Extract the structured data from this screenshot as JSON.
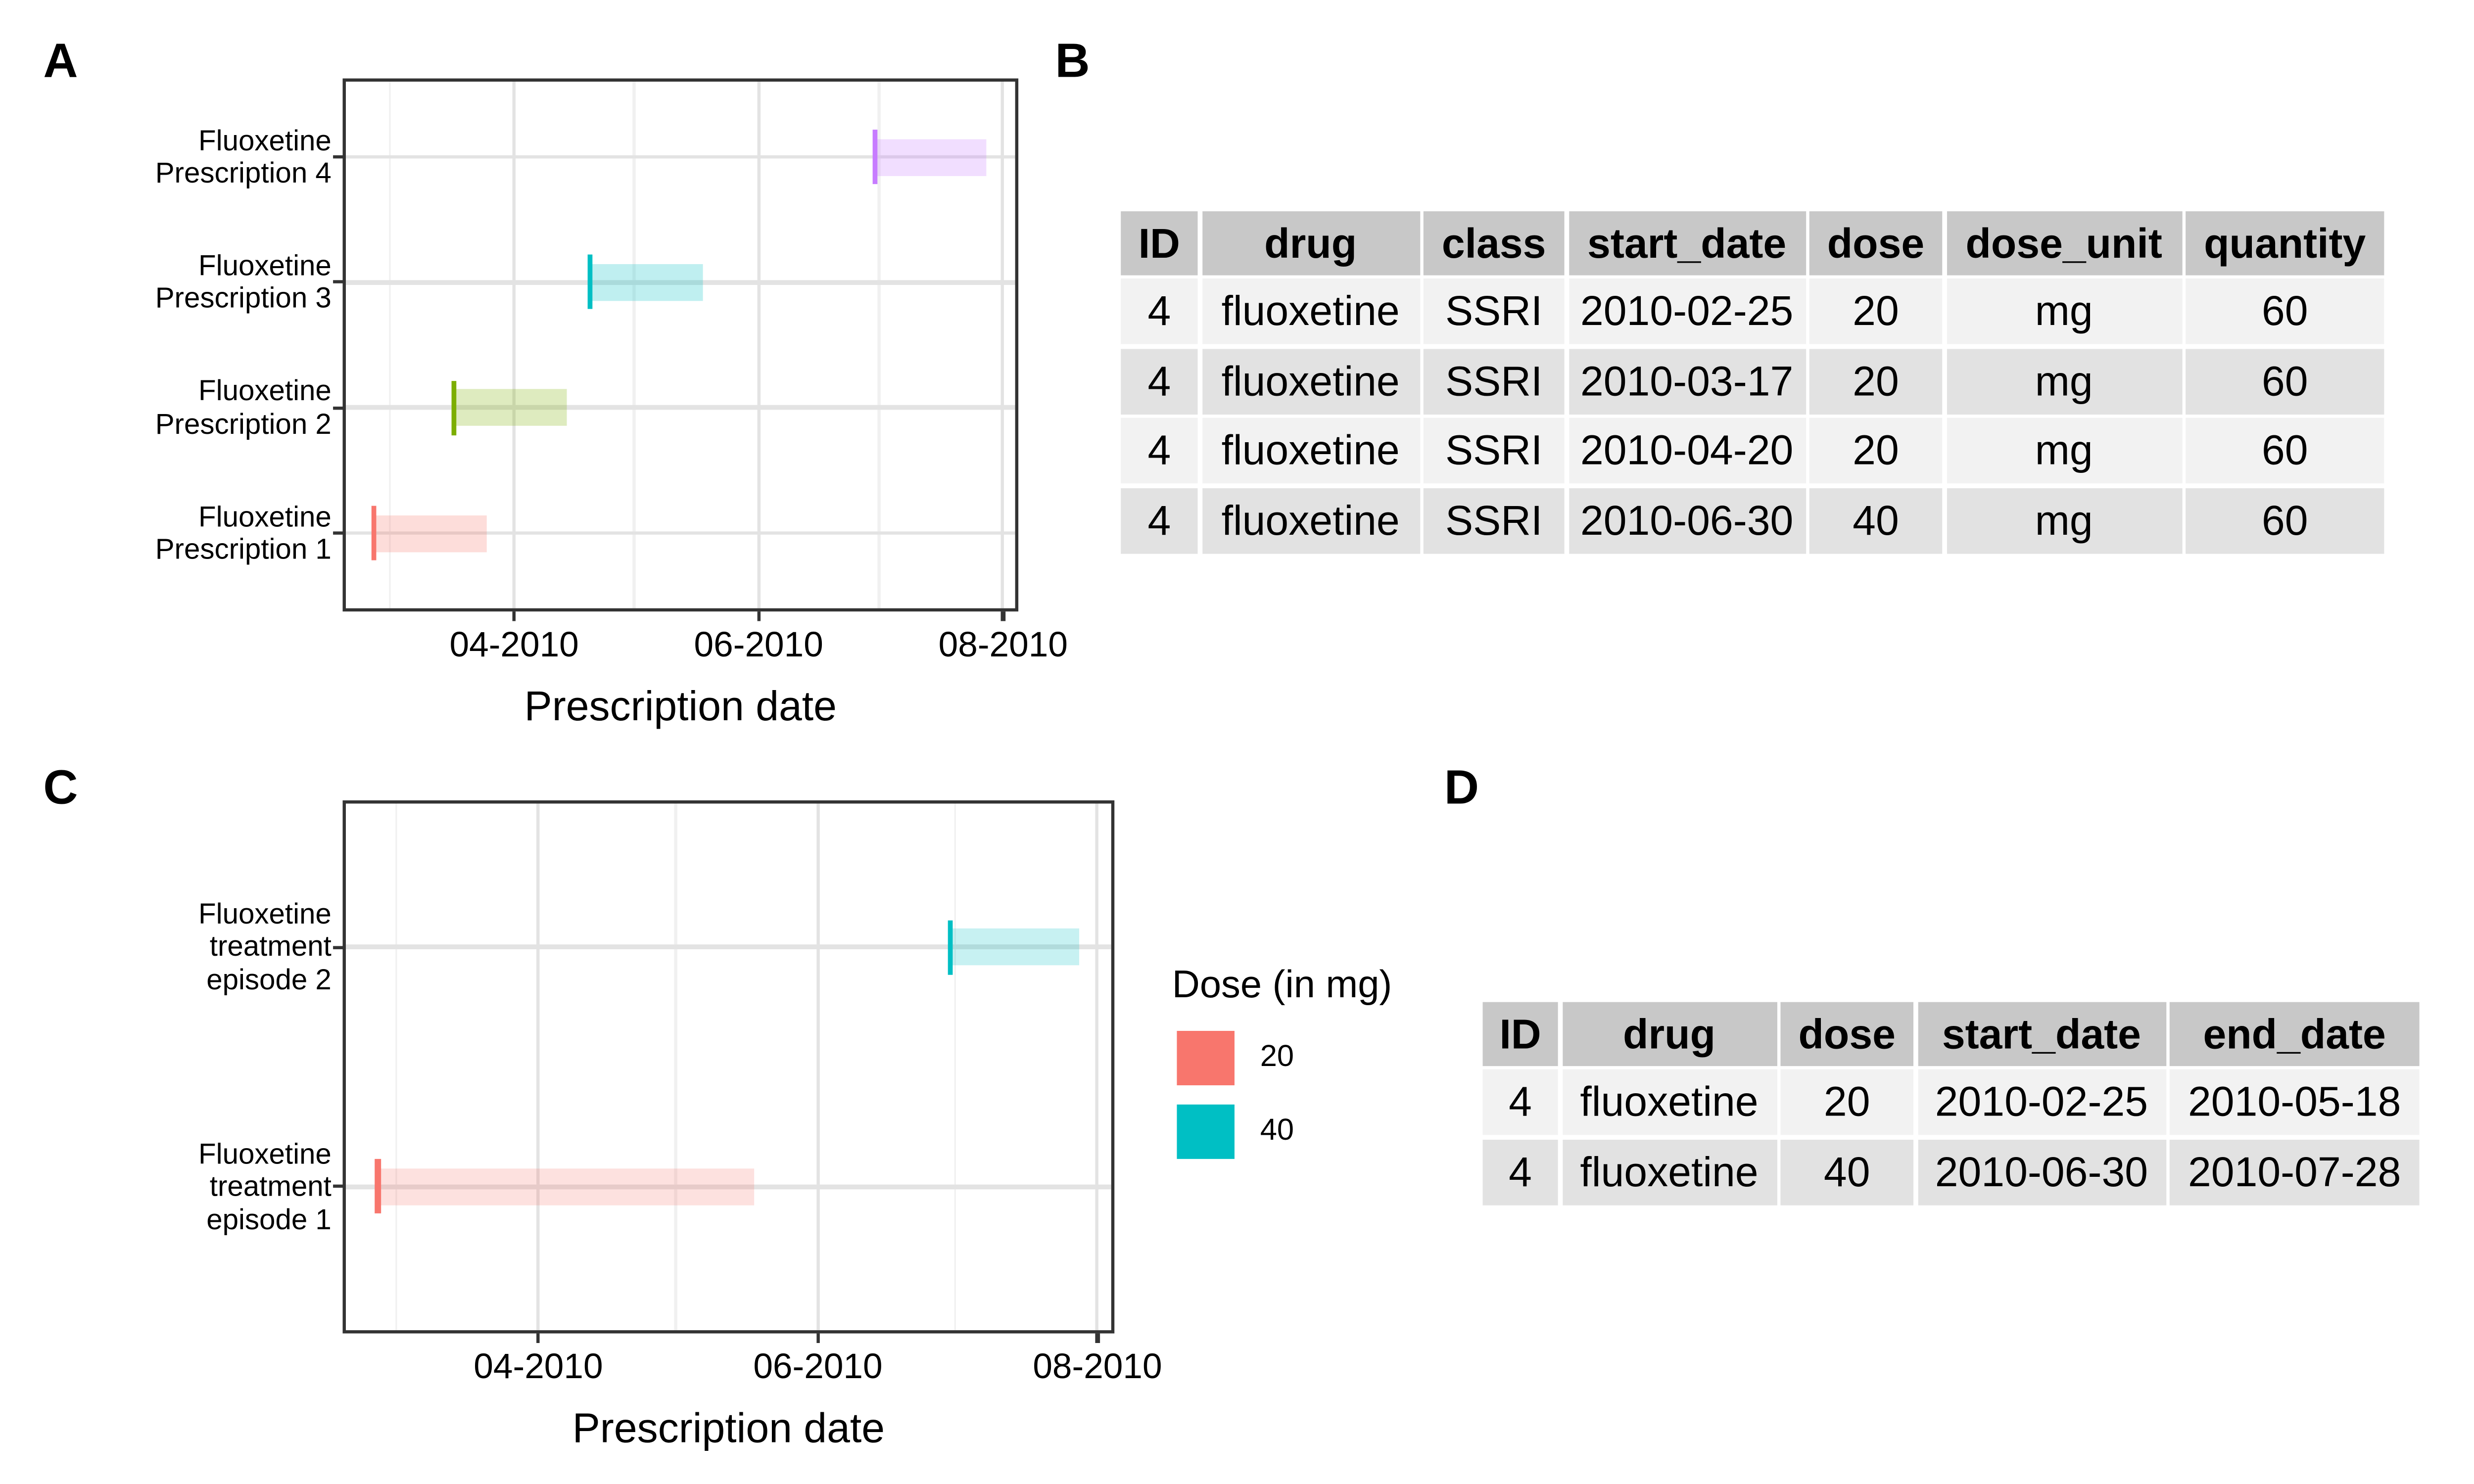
{
  "panel_labels": {
    "a": "A",
    "b": "B",
    "c": "C",
    "d": "D"
  },
  "legend": {
    "title": "Dose (in mg)",
    "items": [
      {
        "label": "20",
        "color": "#F8766D"
      },
      {
        "label": "40",
        "color": "#00BFC4"
      }
    ]
  },
  "colors": {
    "palette_line": [
      "#F8766D",
      "#7CAE00",
      "#00BFC4",
      "#C77CFF"
    ],
    "grid_major": "#E3E3E3",
    "grid_minor": "#F0F0F0",
    "panel_border": "#333333",
    "table_header_bg": "#C8C8C8",
    "table_row_light": "#F2F2F2",
    "table_row_dark": "#E2E2E2"
  },
  "chart_data": [
    {
      "type": "gantt",
      "panel": "A",
      "xlabel": "Prescription date",
      "x_domain": [
        "2010-02-18",
        "2010-08-04"
      ],
      "x_ticks": [
        {
          "date": "2010-04-01",
          "label": "04-2010"
        },
        {
          "date": "2010-06-01",
          "label": "06-2010"
        },
        {
          "date": "2010-08-01",
          "label": "08-2010"
        }
      ],
      "x_minor": [
        "2010-03-01",
        "2010-05-01",
        "2010-07-01"
      ],
      "categories": [
        {
          "lines": [
            "Fluoxetine",
            "Prescription 4"
          ],
          "start": "2010-06-30",
          "end": "2010-07-28",
          "line_color": "#C77CFF",
          "fill_rgba": "rgba(199,124,255,0.25)"
        },
        {
          "lines": [
            "Fluoxetine",
            "Prescription 3"
          ],
          "start": "2010-04-20",
          "end": "2010-05-18",
          "line_color": "#00BFC4",
          "fill_rgba": "rgba(0,191,196,0.25)"
        },
        {
          "lines": [
            "Fluoxetine",
            "Prescription 2"
          ],
          "start": "2010-03-17",
          "end": "2010-04-14",
          "line_color": "#7CAE00",
          "fill_rgba": "rgba(124,174,0,0.25)"
        },
        {
          "lines": [
            "Fluoxetine",
            "Prescription 1"
          ],
          "start": "2010-02-25",
          "end": "2010-03-25",
          "line_color": "#F8766D",
          "fill_rgba": "rgba(248,118,109,0.25)"
        }
      ]
    },
    {
      "type": "gantt",
      "panel": "C",
      "xlabel": "Prescription date",
      "x_domain": [
        "2010-02-18",
        "2010-08-04"
      ],
      "x_ticks": [
        {
          "date": "2010-04-01",
          "label": "04-2010"
        },
        {
          "date": "2010-06-01",
          "label": "06-2010"
        },
        {
          "date": "2010-08-01",
          "label": "08-2010"
        }
      ],
      "x_minor": [
        "2010-03-01",
        "2010-05-01",
        "2010-07-01"
      ],
      "categories": [
        {
          "lines": [
            "Fluoxetine",
            "treatment",
            "episode 2"
          ],
          "start": "2010-06-30",
          "end": "2010-07-28",
          "dose": "40",
          "line_color": "#00BFC4",
          "fill_rgba": "rgba(0,191,196,0.22)"
        },
        {
          "lines": [
            "Fluoxetine",
            "treatment",
            "episode 1"
          ],
          "start": "2010-02-25",
          "end": "2010-05-18",
          "dose": "20",
          "line_color": "#F8766D",
          "fill_rgba": "rgba(248,118,109,0.22)"
        }
      ]
    },
    {
      "type": "table",
      "panel": "B",
      "headers": [
        "ID",
        "drug",
        "class",
        "start_date",
        "dose",
        "dose_unit",
        "quantity"
      ],
      "rows": [
        [
          "4",
          "fluoxetine",
          "SSRI",
          "2010-02-25",
          "20",
          "mg",
          "60"
        ],
        [
          "4",
          "fluoxetine",
          "SSRI",
          "2010-03-17",
          "20",
          "mg",
          "60"
        ],
        [
          "4",
          "fluoxetine",
          "SSRI",
          "2010-04-20",
          "20",
          "mg",
          "60"
        ],
        [
          "4",
          "fluoxetine",
          "SSRI",
          "2010-06-30",
          "40",
          "mg",
          "60"
        ]
      ]
    },
    {
      "type": "table",
      "panel": "D",
      "headers": [
        "ID",
        "drug",
        "dose",
        "start_date",
        "end_date"
      ],
      "rows": [
        [
          "4",
          "fluoxetine",
          "20",
          "2010-02-25",
          "2010-05-18"
        ],
        [
          "4",
          "fluoxetine",
          "40",
          "2010-06-30",
          "2010-07-28"
        ]
      ]
    }
  ]
}
